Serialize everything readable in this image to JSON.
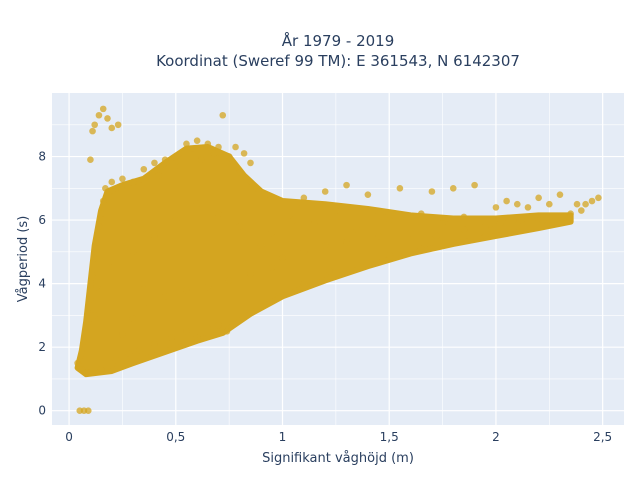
{
  "title_line1": "År 1979 - 2019",
  "title_line2": "Koordinat (Sweref 99 TM): E 361543, N 6142307",
  "chart_data": {
    "type": "scatter",
    "xlabel": "Signifikant våghöjd (m)",
    "ylabel": "Vågperiod (s)",
    "xlim": [
      -0.08,
      2.6
    ],
    "ylim": [
      -0.45,
      10.0
    ],
    "grid": true,
    "x_ticks": [
      0,
      0.5,
      1,
      1.5,
      2,
      2.5
    ],
    "x_tick_labels": [
      "0",
      "0,5",
      "1",
      "1,5",
      "2",
      "2,5"
    ],
    "y_ticks": [
      0,
      2,
      4,
      6,
      8
    ],
    "y_tick_labels": [
      "0",
      "2",
      "4",
      "6",
      "8"
    ],
    "marker_color": "#d4a520",
    "points": [
      {
        "x": 0.05,
        "y": 0.0
      },
      {
        "x": 0.07,
        "y": 0.0
      },
      {
        "x": 0.09,
        "y": 0.0
      },
      {
        "x": 0.04,
        "y": 1.5
      },
      {
        "x": 0.05,
        "y": 1.4
      },
      {
        "x": 0.08,
        "y": 1.2
      },
      {
        "x": 0.1,
        "y": 7.9
      },
      {
        "x": 0.12,
        "y": 9.0
      },
      {
        "x": 0.14,
        "y": 9.3
      },
      {
        "x": 0.16,
        "y": 9.5
      },
      {
        "x": 0.18,
        "y": 9.2
      },
      {
        "x": 0.2,
        "y": 8.9
      },
      {
        "x": 0.23,
        "y": 9.0
      },
      {
        "x": 0.11,
        "y": 8.8
      },
      {
        "x": 0.72,
        "y": 9.3
      },
      {
        "x": 0.82,
        "y": 8.1
      },
      {
        "x": 0.85,
        "y": 7.8
      },
      {
        "x": 0.78,
        "y": 8.3
      },
      {
        "x": 0.74,
        "y": 2.5
      },
      {
        "x": 1.1,
        "y": 6.7
      },
      {
        "x": 1.2,
        "y": 6.9
      },
      {
        "x": 1.3,
        "y": 7.1
      },
      {
        "x": 1.4,
        "y": 6.8
      },
      {
        "x": 1.55,
        "y": 7.0
      },
      {
        "x": 1.7,
        "y": 6.9
      },
      {
        "x": 1.8,
        "y": 7.0
      },
      {
        "x": 1.9,
        "y": 7.1
      },
      {
        "x": 2.0,
        "y": 6.4
      },
      {
        "x": 2.05,
        "y": 6.6
      },
      {
        "x": 2.1,
        "y": 6.5
      },
      {
        "x": 2.15,
        "y": 6.4
      },
      {
        "x": 2.2,
        "y": 6.7
      },
      {
        "x": 2.25,
        "y": 6.5
      },
      {
        "x": 2.3,
        "y": 6.8
      },
      {
        "x": 2.35,
        "y": 6.2
      },
      {
        "x": 2.4,
        "y": 6.3
      },
      {
        "x": 2.45,
        "y": 6.6
      },
      {
        "x": 2.48,
        "y": 6.7
      },
      {
        "x": 2.42,
        "y": 6.5
      },
      {
        "x": 2.38,
        "y": 6.5
      },
      {
        "x": 2.28,
        "y": 6.1
      },
      {
        "x": 2.22,
        "y": 6.0
      },
      {
        "x": 2.12,
        "y": 6.0
      },
      {
        "x": 2.02,
        "y": 5.9
      },
      {
        "x": 1.95,
        "y": 5.8
      },
      {
        "x": 1.85,
        "y": 6.1
      },
      {
        "x": 1.75,
        "y": 5.9
      },
      {
        "x": 1.65,
        "y": 6.2
      },
      {
        "x": 1.5,
        "y": 6.0
      },
      {
        "x": 1.35,
        "y": 5.7
      },
      {
        "x": 1.25,
        "y": 6.3
      },
      {
        "x": 1.15,
        "y": 5.9
      },
      {
        "x": 1.05,
        "y": 6.0
      },
      {
        "x": 0.95,
        "y": 5.6
      },
      {
        "x": 0.9,
        "y": 5.2
      },
      {
        "x": 1.0,
        "y": 4.8
      },
      {
        "x": 1.1,
        "y": 5.0
      },
      {
        "x": 1.2,
        "y": 5.2
      },
      {
        "x": 1.3,
        "y": 5.3
      },
      {
        "x": 1.45,
        "y": 5.5
      },
      {
        "x": 1.6,
        "y": 5.6
      },
      {
        "x": 1.72,
        "y": 5.5
      },
      {
        "x": 1.85,
        "y": 5.7
      },
      {
        "x": 1.98,
        "y": 5.7
      },
      {
        "x": 2.08,
        "y": 6.0
      },
      {
        "x": 2.18,
        "y": 6.1
      },
      {
        "x": 2.32,
        "y": 6.1
      },
      {
        "x": 0.98,
        "y": 3.6
      },
      {
        "x": 1.1,
        "y": 4.0
      },
      {
        "x": 1.22,
        "y": 4.4
      },
      {
        "x": 1.35,
        "y": 4.6
      },
      {
        "x": 1.5,
        "y": 4.9
      },
      {
        "x": 1.65,
        "y": 5.1
      },
      {
        "x": 1.8,
        "y": 5.3
      },
      {
        "x": 1.95,
        "y": 5.5
      },
      {
        "x": 0.2,
        "y": 7.2
      },
      {
        "x": 0.25,
        "y": 7.3
      },
      {
        "x": 0.3,
        "y": 7.2
      },
      {
        "x": 0.35,
        "y": 7.6
      },
      {
        "x": 0.4,
        "y": 7.8
      },
      {
        "x": 0.45,
        "y": 7.9
      },
      {
        "x": 0.5,
        "y": 8.0
      },
      {
        "x": 0.55,
        "y": 8.4
      },
      {
        "x": 0.6,
        "y": 8.5
      },
      {
        "x": 0.65,
        "y": 8.4
      },
      {
        "x": 0.7,
        "y": 8.3
      },
      {
        "x": 0.75,
        "y": 8.0
      },
      {
        "x": 0.8,
        "y": 7.5
      },
      {
        "x": 0.88,
        "y": 7.0
      },
      {
        "x": 0.62,
        "y": 7.9
      },
      {
        "x": 0.52,
        "y": 7.7
      },
      {
        "x": 0.42,
        "y": 7.4
      },
      {
        "x": 0.68,
        "y": 8.1
      },
      {
        "x": 0.33,
        "y": 1.9
      },
      {
        "x": 0.4,
        "y": 2.1
      },
      {
        "x": 0.48,
        "y": 2.3
      },
      {
        "x": 0.55,
        "y": 2.5
      },
      {
        "x": 0.6,
        "y": 2.3
      },
      {
        "x": 0.65,
        "y": 2.6
      },
      {
        "x": 0.7,
        "y": 2.7
      },
      {
        "x": 0.28,
        "y": 1.8
      },
      {
        "x": 0.22,
        "y": 1.6
      },
      {
        "x": 0.15,
        "y": 1.3
      },
      {
        "x": 0.1,
        "y": 1.2
      },
      {
        "x": 0.06,
        "y": 1.3
      },
      {
        "x": 0.08,
        "y": 2.0
      },
      {
        "x": 0.09,
        "y": 2.8
      },
      {
        "x": 0.1,
        "y": 3.5
      },
      {
        "x": 0.11,
        "y": 4.2
      },
      {
        "x": 0.12,
        "y": 4.8
      },
      {
        "x": 0.13,
        "y": 5.3
      },
      {
        "x": 0.14,
        "y": 5.8
      },
      {
        "x": 0.15,
        "y": 6.2
      },
      {
        "x": 0.16,
        "y": 6.6
      },
      {
        "x": 0.17,
        "y": 7.0
      },
      {
        "x": 0.19,
        "y": 6.9
      },
      {
        "x": 0.12,
        "y": 3.0
      },
      {
        "x": 0.13,
        "y": 3.9
      },
      {
        "x": 0.25,
        "y": 2.4
      },
      {
        "x": 0.3,
        "y": 2.9
      },
      {
        "x": 0.38,
        "y": 3.3
      },
      {
        "x": 0.45,
        "y": 3.6
      },
      {
        "x": 0.55,
        "y": 3.8
      },
      {
        "x": 0.65,
        "y": 3.9
      },
      {
        "x": 0.75,
        "y": 4.1
      },
      {
        "x": 0.85,
        "y": 4.3
      },
      {
        "x": 0.95,
        "y": 4.5
      },
      {
        "x": 0.3,
        "y": 5.0
      },
      {
        "x": 0.4,
        "y": 5.5
      },
      {
        "x": 0.5,
        "y": 6.0
      },
      {
        "x": 0.6,
        "y": 6.5
      },
      {
        "x": 0.7,
        "y": 6.2
      },
      {
        "x": 0.8,
        "y": 5.8
      },
      {
        "x": 0.2,
        "y": 4.5
      },
      {
        "x": 0.35,
        "y": 4.0
      }
    ]
  }
}
